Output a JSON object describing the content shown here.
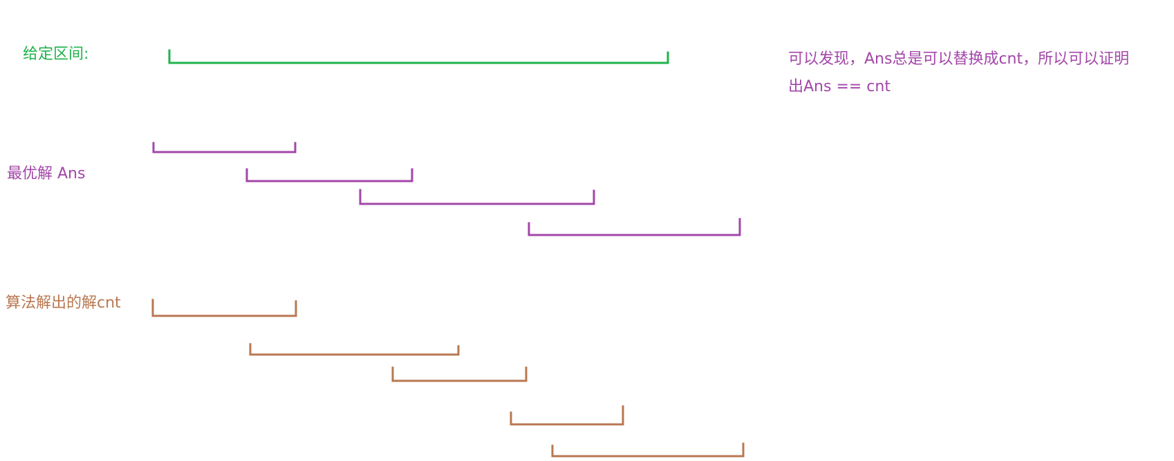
{
  "colors": {
    "given": "#1db34a",
    "ans": "#a246a8",
    "cnt": "#b87750"
  },
  "labels": {
    "given": "给定区间:",
    "ans": "最优解 Ans",
    "cnt": "算法解出的解cnt"
  },
  "note": {
    "line1": "可以发现，Ans总是可以替换成cnt，所以可以证明",
    "line2": "出Ans == cnt"
  }
}
